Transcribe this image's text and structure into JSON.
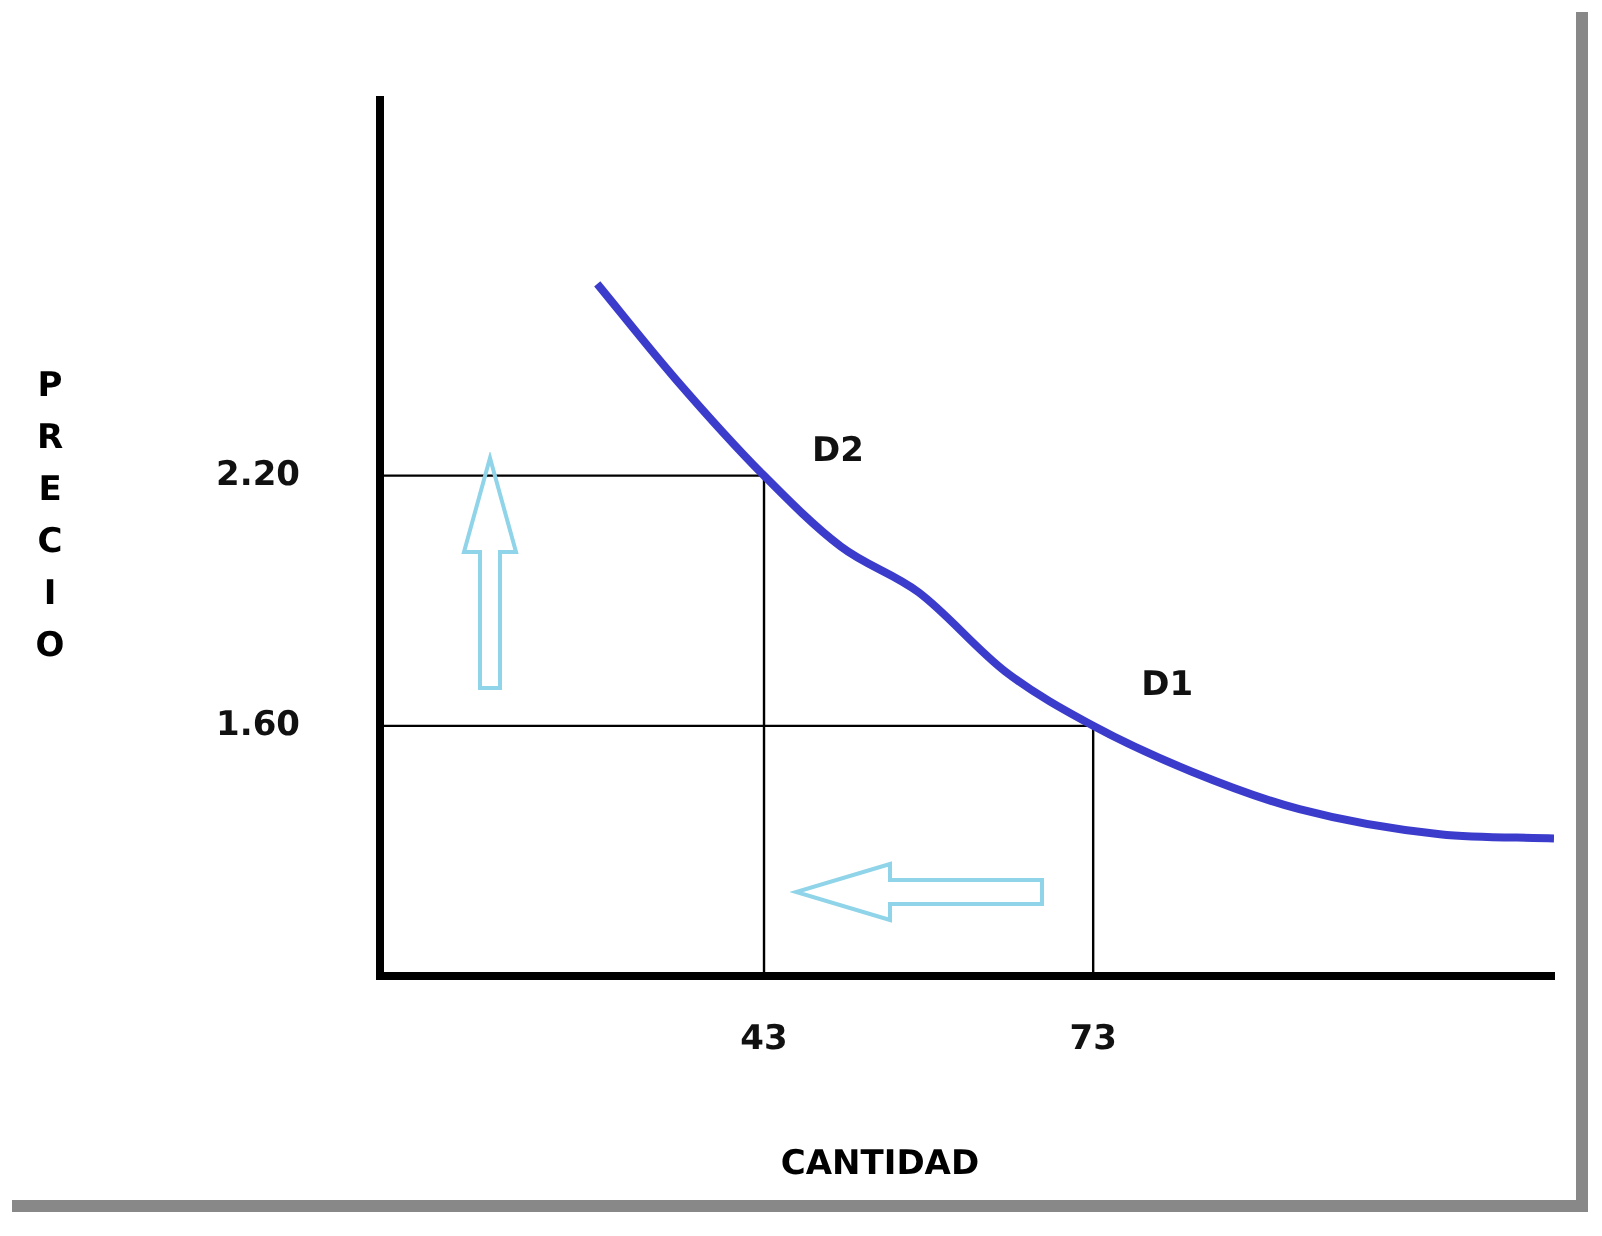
{
  "chart_data": {
    "type": "line",
    "xlabel": "CANTIDAD",
    "ylabel": "PRECIO",
    "xlim": [
      8,
      115
    ],
    "ylim": [
      1,
      3.1
    ],
    "xticks": [
      43,
      73
    ],
    "yticks": [
      {
        "value": 1.6,
        "label": "1.60"
      },
      {
        "value": 2.2,
        "label": "2.20"
      }
    ],
    "grid": false,
    "legend": false,
    "marker": "none",
    "line_style": "solid",
    "series": [
      {
        "color": "#3c3ccc",
        "x": [
          27.8,
          35,
          43,
          50,
          57.1,
          65,
          73,
          82,
          91.8,
          104.6,
          115
        ],
        "values": [
          2.66,
          2.43,
          2.2,
          2.03,
          1.92,
          1.73,
          1.6,
          1.49,
          1.4,
          1.34,
          1.33
        ]
      },
      {
        "color": "#000000",
        "x": [
          8,
          43,
          43
        ],
        "values": [
          2.2,
          2.2,
          1
        ]
      },
      {
        "color": "#000000",
        "x": [
          8,
          73,
          73
        ],
        "values": [
          1.6,
          1.6,
          1
        ]
      }
    ],
    "annotations": [
      {
        "text": "D2",
        "x": 43,
        "y": 2.2
      },
      {
        "text": "D1",
        "x": 73,
        "y": 1.6
      }
    ]
  }
}
